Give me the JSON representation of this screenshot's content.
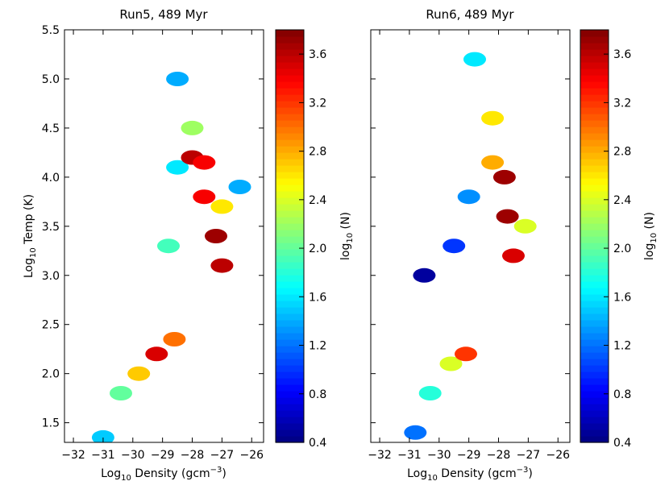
{
  "chart_data": [
    {
      "type": "heatmap",
      "subtype": "hexbin",
      "title": "Run5, 489 Myr",
      "xlabel": "Log10 Density (gcm^-3)",
      "ylabel": "Log10 Temp (K)",
      "xlim": [
        -32.3,
        -25.6
      ],
      "ylim": [
        1.3,
        5.5
      ],
      "xticks": [
        -32,
        -31,
        -30,
        -29,
        -28,
        -27,
        -26
      ],
      "xtick_labels": [
        "−32",
        "−31",
        "−30",
        "−29",
        "−28",
        "−27",
        "−26"
      ],
      "yticks": [
        1.5,
        2.0,
        2.5,
        3.0,
        3.5,
        4.0,
        4.5,
        5.0,
        5.5
      ],
      "ytick_labels": [
        "1.5",
        "2.0",
        "2.5",
        "3.0",
        "3.5",
        "4.0",
        "4.5",
        "5.0",
        "5.5"
      ],
      "colorbar": {
        "label": "log10 (N)",
        "range": [
          0.4,
          3.8
        ],
        "ticks": [
          0.4,
          0.8,
          1.2,
          1.6,
          2.0,
          2.4,
          2.8,
          3.2,
          3.6
        ],
        "tick_labels": [
          "0.4",
          "0.8",
          "1.2",
          "1.6",
          "2.0",
          "2.4",
          "2.8",
          "3.2",
          "3.6"
        ],
        "colormap": "jet"
      },
      "regions": [
        {
          "x": -31.0,
          "y": 1.35,
          "value": 1.5
        },
        {
          "x": -30.4,
          "y": 1.8,
          "value": 2.0
        },
        {
          "x": -29.8,
          "y": 2.0,
          "value": 2.7
        },
        {
          "x": -29.2,
          "y": 2.2,
          "value": 3.5
        },
        {
          "x": -28.6,
          "y": 2.35,
          "value": 3.0
        },
        {
          "x": -28.8,
          "y": 3.3,
          "value": 1.9
        },
        {
          "x": -28.5,
          "y": 4.1,
          "value": 1.6
        },
        {
          "x": -28.0,
          "y": 4.2,
          "value": 3.6
        },
        {
          "x": -27.6,
          "y": 4.15,
          "value": 3.4
        },
        {
          "x": -27.6,
          "y": 3.8,
          "value": 3.4
        },
        {
          "x": -27.2,
          "y": 3.4,
          "value": 3.7
        },
        {
          "x": -27.0,
          "y": 3.1,
          "value": 3.6
        },
        {
          "x": -27.0,
          "y": 3.7,
          "value": 2.6
        },
        {
          "x": -26.4,
          "y": 3.9,
          "value": 1.4
        },
        {
          "x": -28.5,
          "y": 5.0,
          "value": 1.4
        },
        {
          "x": -28.0,
          "y": 4.5,
          "value": 2.2
        }
      ]
    },
    {
      "type": "heatmap",
      "subtype": "hexbin",
      "title": "Run6, 489 Myr",
      "xlabel": "Log10 Density (gcm^-3)",
      "ylabel": "",
      "xlim": [
        -32.3,
        -25.6
      ],
      "ylim": [
        1.3,
        5.5
      ],
      "xticks": [
        -32,
        -31,
        -30,
        -29,
        -28,
        -27,
        -26
      ],
      "xtick_labels": [
        "−32",
        "−31",
        "−30",
        "−29",
        "−28",
        "−27",
        "−26"
      ],
      "colorbar": {
        "label": "log10 (N)",
        "range": [
          0.4,
          3.8
        ],
        "ticks": [
          0.4,
          0.8,
          1.2,
          1.6,
          2.0,
          2.4,
          2.8,
          3.2,
          3.6
        ],
        "tick_labels": [
          "0.4",
          "0.8",
          "1.2",
          "1.6",
          "2.0",
          "2.4",
          "2.8",
          "3.2",
          "3.6"
        ],
        "colormap": "jet"
      },
      "regions": [
        {
          "x": -30.8,
          "y": 1.4,
          "value": 1.2
        },
        {
          "x": -30.3,
          "y": 1.8,
          "value": 1.8
        },
        {
          "x": -29.6,
          "y": 2.1,
          "value": 2.4
        },
        {
          "x": -29.1,
          "y": 2.2,
          "value": 3.2
        },
        {
          "x": -30.5,
          "y": 3.0,
          "value": 0.5
        },
        {
          "x": -29.5,
          "y": 3.3,
          "value": 1.0
        },
        {
          "x": -29.0,
          "y": 3.8,
          "value": 1.3
        },
        {
          "x": -28.2,
          "y": 4.15,
          "value": 2.8
        },
        {
          "x": -27.8,
          "y": 4.0,
          "value": 3.7
        },
        {
          "x": -27.7,
          "y": 3.6,
          "value": 3.7
        },
        {
          "x": -27.5,
          "y": 3.2,
          "value": 3.5
        },
        {
          "x": -27.1,
          "y": 3.5,
          "value": 2.4
        },
        {
          "x": -28.2,
          "y": 4.6,
          "value": 2.6
        },
        {
          "x": -28.8,
          "y": 5.2,
          "value": 1.6
        }
      ]
    }
  ]
}
